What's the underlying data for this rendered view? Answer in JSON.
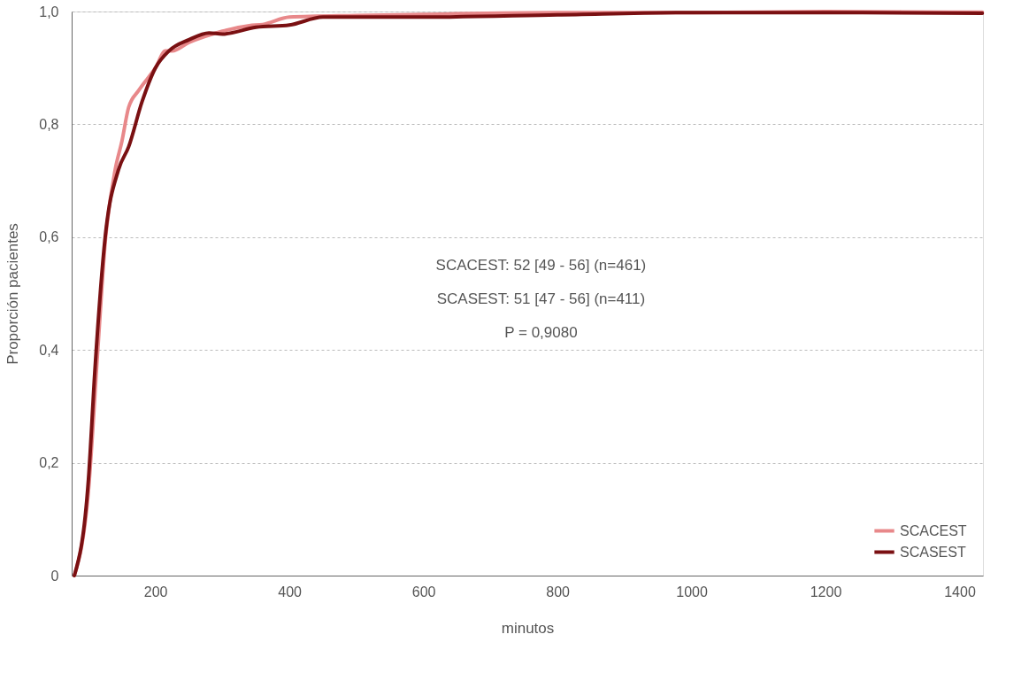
{
  "chart_data": {
    "type": "line",
    "xlabel": "minutos",
    "ylabel": "Proporción pacientes",
    "xlim": [
      75,
      1435
    ],
    "xticks": [
      200,
      400,
      600,
      800,
      1000,
      1200,
      1400
    ],
    "ylim": [
      0,
      1
    ],
    "yticks": [
      0,
      {
        "value": 0.2,
        "label": "0,2"
      },
      {
        "value": 0.4,
        "label": "0,4"
      },
      {
        "value": 0.6,
        "label": "0,6"
      },
      {
        "value": 0.8,
        "label": "0,8"
      },
      {
        "value": 1,
        "label": "1,0"
      }
    ],
    "grid": "y",
    "legend": "bottom right",
    "line_style": "solid",
    "marker": "none",
    "annotations": [
      "SCACEST: 52 [49 - 56] (n=461)",
      "SCASEST: 51 [47 - 56] (n=411)",
      "P = 0,9080"
    ],
    "series": [
      {
        "name": "SCACEST",
        "color": "#e8888a",
        "x": [
          79,
          100,
          114,
          125,
          140,
          150,
          160,
          175,
          200,
          215,
          225,
          250,
          300,
          340,
          360,
          400,
          500,
          600,
          800,
          1000,
          1200,
          1400,
          1434
        ],
        "values": [
          0,
          0.15,
          0.4,
          0.59,
          0.72,
          0.77,
          0.83,
          0.86,
          0.9,
          0.93,
          0.93,
          0.945,
          0.965,
          0.975,
          0.977,
          0.99,
          0.993,
          0.995,
          0.998,
          0.998,
          1.0,
          0.999,
          0.999
        ]
      },
      {
        "name": "SCASEST",
        "color": "#7a1012",
        "x": [
          79,
          100,
          110,
          125,
          145,
          160,
          180,
          200,
          220,
          250,
          280,
          300,
          350,
          400,
          450,
          600,
          800,
          1000,
          1200,
          1434
        ],
        "values": [
          0,
          0.17,
          0.37,
          0.6,
          0.72,
          0.76,
          0.84,
          0.9,
          0.93,
          0.95,
          0.962,
          0.96,
          0.972,
          0.976,
          0.99,
          0.99,
          0.994,
          0.998,
          0.998,
          0.997
        ]
      }
    ]
  }
}
